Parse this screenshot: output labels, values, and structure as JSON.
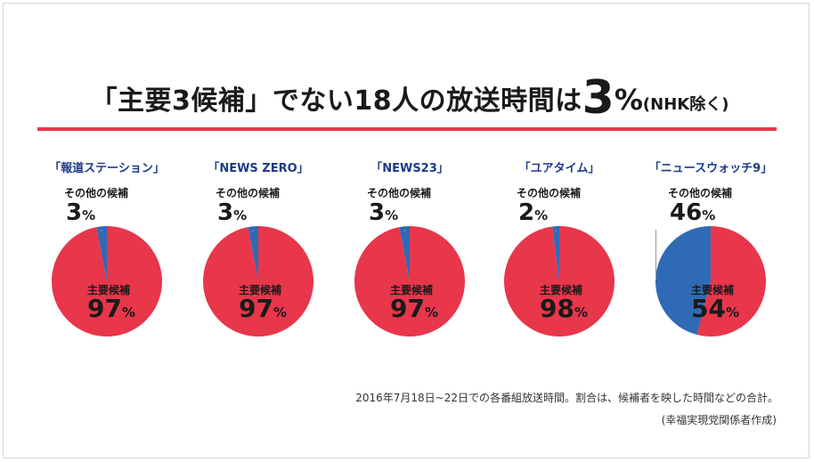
{
  "title": {
    "main": "「主要3候補」でない18人の放送時間は",
    "big": "3",
    "pct": "%",
    "sub": "(NHK除く)"
  },
  "labels": {
    "other": "その他の候補",
    "main": "主要候補",
    "unit": "%"
  },
  "colors": {
    "main": "#e8364b",
    "other": "#2f6ab5",
    "rule": "#e8364b",
    "show": "#1e3a8a"
  },
  "chart_data": [
    {
      "type": "pie",
      "title": "「報道ステーション」",
      "labels": [
        "その他の候補",
        "主要候補"
      ],
      "values": [
        3,
        97
      ]
    },
    {
      "type": "pie",
      "title": "「NEWS ZERO」",
      "labels": [
        "その他の候補",
        "主要候補"
      ],
      "values": [
        3,
        97
      ]
    },
    {
      "type": "pie",
      "title": "「NEWS23」",
      "labels": [
        "その他の候補",
        "主要候補"
      ],
      "values": [
        3,
        97
      ]
    },
    {
      "type": "pie",
      "title": "「ユアタイム」",
      "labels": [
        "その他の候補",
        "主要候補"
      ],
      "values": [
        2,
        98
      ]
    },
    {
      "type": "pie",
      "title": "「ニュースウォッチ9」",
      "labels": [
        "その他の候補",
        "主要候補"
      ],
      "values": [
        46,
        54
      ]
    }
  ],
  "footnote": "2016年7月18日~22日での各番組放送時間。割合は、候補者を映した時間などの合計。",
  "credit": "(幸福実現党関係者作成)"
}
